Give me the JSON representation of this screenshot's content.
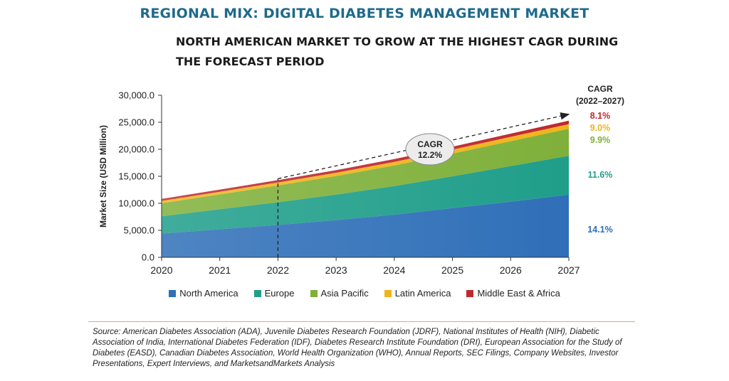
{
  "title": "REGIONAL MIX: DIGITAL DIABETES MANAGEMENT MARKET",
  "subtitle": "NORTH AMERICAN MARKET TO GROW AT THE HIGHEST CAGR DURING THE FORECAST PERIOD",
  "source": "Source: American Diabetes Association (ADA), Juvenile Diabetes Research Foundation (JDRF), National Institutes of Health (NIH), Diabetic Association of India, International Diabetes Federation (IDF), Diabetes Research Institute Foundation (DRI), European Association for the Study of Diabetes (EASD), Canadian Diabetes Association, World Health Organization (WHO), Annual Reports, SEC Filings, Company Websites, Investor Presentations, Expert Interviews, and MarketsandMarkets Analysis",
  "chart_data": {
    "type": "area",
    "stacked": true,
    "ylabel": "Market Size (USD Million)",
    "x": [
      "2020",
      "2021",
      "2022",
      "2023",
      "2024",
      "2025",
      "2026",
      "2027"
    ],
    "yticks": [
      "0.0",
      "5,000.0",
      "10,000.0",
      "15,000.0",
      "20,000.0",
      "25,000.0",
      "30,000.0"
    ],
    "ylim": [
      0,
      30000
    ],
    "legend_position": "bottom",
    "cagr_header": [
      "CAGR",
      "(2022–2027)"
    ],
    "overall_cagr": {
      "label": "CAGR",
      "value": "12.2%",
      "from": "2022",
      "to": "2027"
    },
    "series": [
      {
        "name": "North America",
        "color": "#2f6fb8",
        "cagr": "14.1%",
        "values": [
          4400,
          5200,
          6000,
          6900,
          7900,
          9100,
          10300,
          11600
        ]
      },
      {
        "name": "Europe",
        "color": "#1f9e8a",
        "cagr": "11.6%",
        "values": [
          3200,
          3700,
          4200,
          4700,
          5300,
          5900,
          6600,
          7200
        ]
      },
      {
        "name": "Asia Pacific",
        "color": "#7fb03a",
        "cagr": "9.9%",
        "values": [
          2400,
          2750,
          3100,
          3450,
          3800,
          4200,
          4600,
          5000
        ]
      },
      {
        "name": "Latin America",
        "color": "#f0b41c",
        "cagr": "9.0%",
        "values": [
          450,
          500,
          560,
          610,
          670,
          730,
          800,
          860
        ]
      },
      {
        "name": "Middle East & Africa",
        "color": "#c0282d",
        "cagr": "8.1%",
        "values": [
          350,
          390,
          430,
          470,
          510,
          550,
          590,
          640
        ]
      }
    ]
  }
}
